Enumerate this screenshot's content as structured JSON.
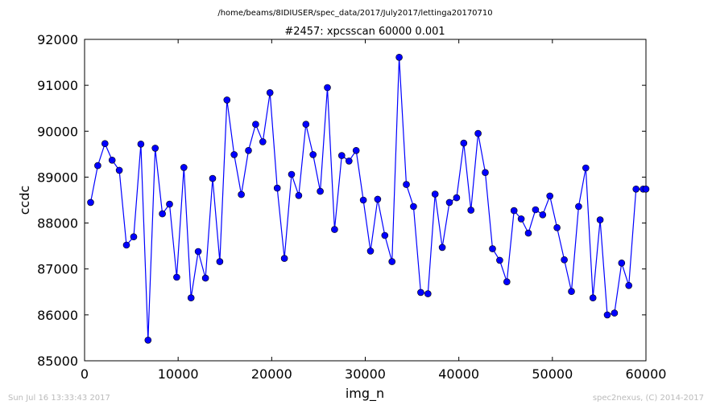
{
  "file_path": "/home/beams/8IDIUSER/spec_data/2017/July2017/lettinga20170710",
  "footer_left": "Sun Jul 16 13:33:43 2017",
  "footer_right": "spec2nexus, (C) 2014-2017",
  "colors": {
    "series": "#0000ff",
    "axes": "#000000",
    "footer": "#bbbbbb"
  },
  "chart_data": {
    "type": "line",
    "title": "#2457: xpcsscan 60000 0.001",
    "xlabel": "img_n",
    "ylabel": "ccdc",
    "xlim": [
      0,
      60000
    ],
    "ylim": [
      85000,
      92000
    ],
    "xticks": [
      0,
      10000,
      20000,
      30000,
      40000,
      50000,
      60000
    ],
    "yticks": [
      85000,
      86000,
      87000,
      88000,
      89000,
      90000,
      91000,
      92000
    ],
    "marker": "circle",
    "grid": false,
    "series": [
      {
        "x": [
          645,
          1412,
          2179,
          2946,
          3713,
          4480,
          5247,
          6014,
          6781,
          7548,
          8315,
          9082,
          9849,
          10616,
          11383,
          12150,
          12917,
          13684,
          14451,
          15218,
          15985,
          16752,
          17519,
          18286,
          19053,
          19820,
          20587,
          21354,
          22121,
          22888,
          23655,
          24422,
          25189,
          25956,
          26723,
          27490,
          28257,
          29024,
          29791,
          30558,
          31325,
          32092,
          32859,
          33626,
          34393,
          35160,
          35927,
          36694,
          37461,
          38228,
          38995,
          39762,
          40529,
          41296,
          42063,
          42830,
          43597,
          44364,
          45131,
          45898,
          46665,
          47432,
          48199,
          48966,
          49733,
          50500,
          51267,
          52034,
          52801,
          53568,
          54335,
          55102,
          55869,
          56636,
          57403,
          58170,
          58937,
          59704,
          60000
        ],
        "y": [
          88450,
          89250,
          89730,
          89370,
          89150,
          87520,
          87700,
          89720,
          85450,
          89630,
          88200,
          88410,
          86820,
          89210,
          86370,
          87380,
          86800,
          88970,
          87160,
          90680,
          89490,
          88620,
          89580,
          90150,
          89770,
          90840,
          88760,
          87230,
          89060,
          88600,
          90150,
          89490,
          88690,
          90950,
          87860,
          89470,
          89350,
          89580,
          88500,
          87390,
          88520,
          87730,
          87160,
          91610,
          88840,
          88360,
          86490,
          86460,
          88630,
          87470,
          88450,
          88550,
          89740,
          88280,
          89950,
          89100,
          87440,
          87190,
          86720,
          88270,
          88090,
          87780,
          88290,
          88180,
          88590,
          87900,
          87200,
          86510,
          88360,
          89200,
          86370,
          88070,
          86000,
          86040,
          87130,
          86640,
          88740,
          88740,
          88740
        ]
      }
    ]
  }
}
